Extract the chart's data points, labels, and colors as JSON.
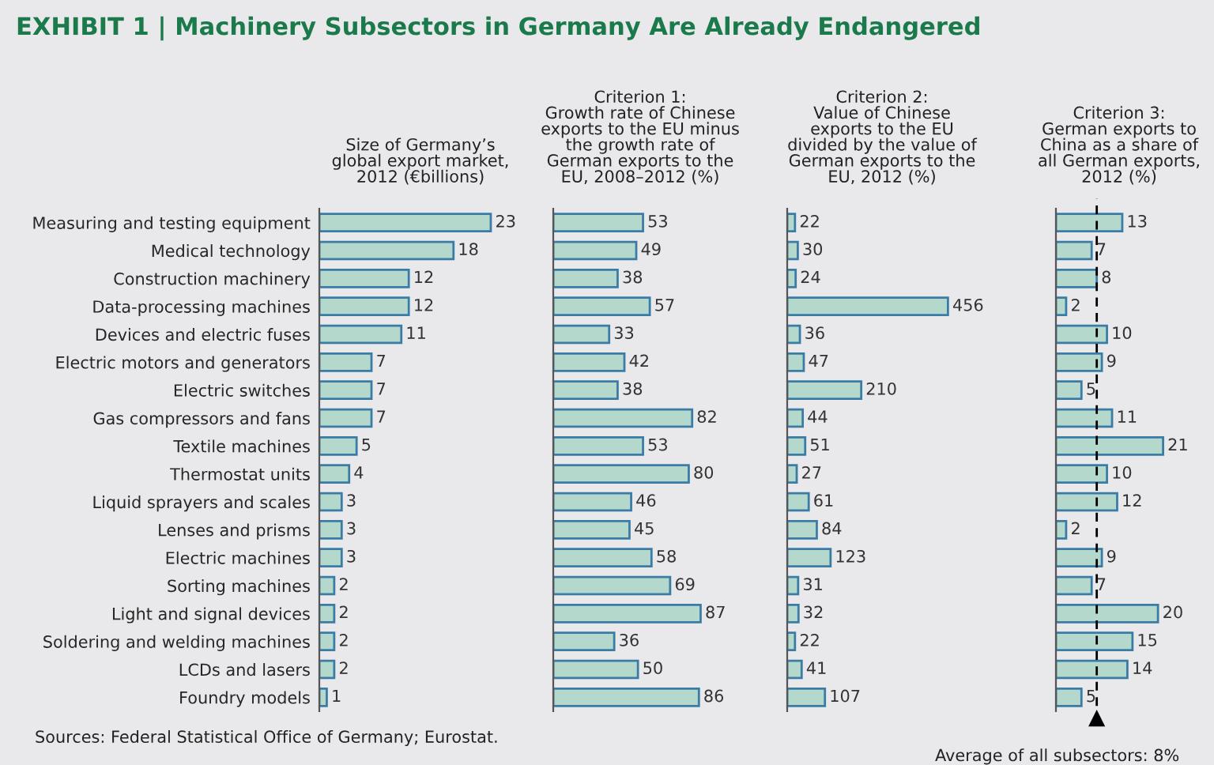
{
  "chart_data": [
    {
      "type": "bar",
      "orientation": "horizontal",
      "data_labels": true,
      "grid": false,
      "legend": false,
      "title": "Size of Germany’s\nglobal export market,\n2012 (€billions)",
      "annotations": [
        "EXHIBIT 1 | Machinery Subsectors in Germany Are Already Endangered",
        "Sources: Federal Statistical Office of Germany; Eurostat."
      ],
      "categories": [
        "Measuring and testing equipment",
        "Medical technology",
        "Construction machinery",
        "Data-processing machines",
        "Devices and electric fuses",
        "Electric motors and generators",
        "Electric switches",
        "Gas compressors and fans",
        "Textile machines",
        "Thermostat units",
        "Liquid sprayers and scales",
        "Lenses and prisms",
        "Electric machines",
        "Sorting machines",
        "Light and signal devices",
        "Soldering and welding machines",
        "LCDs and lasers",
        "Foundry models"
      ],
      "series": [
        {
          "color": "#b5d8cc",
          "values": [
            23,
            18,
            12,
            12,
            11,
            7,
            7,
            7,
            5,
            4,
            3,
            3,
            3,
            2,
            2,
            2,
            2,
            1
          ]
        }
      ]
    },
    {
      "type": "bar",
      "orientation": "horizontal",
      "data_labels": true,
      "grid": false,
      "legend": false,
      "title": "Criterion 1:\nGrowth rate of Chinese\nexports to the EU minus\nthe growth rate of\nGerman exports to the\nEU, 2008–2012 (%)",
      "series": [
        {
          "color": "#b5d8cc",
          "values": [
            53,
            49,
            38,
            57,
            33,
            42,
            38,
            82,
            53,
            80,
            46,
            45,
            58,
            69,
            87,
            36,
            50,
            86
          ]
        }
      ]
    },
    {
      "type": "bar",
      "orientation": "horizontal",
      "data_labels": true,
      "grid": false,
      "legend": false,
      "title": "Criterion 2:\nValue of Chinese\nexports to the EU\ndivided by the value of\nGerman exports to the\nEU, 2012 (%)",
      "series": [
        {
          "color": "#b5d8cc",
          "values": [
            22,
            30,
            24,
            456,
            36,
            47,
            210,
            44,
            51,
            27,
            61,
            84,
            123,
            31,
            32,
            22,
            41,
            107
          ]
        }
      ]
    },
    {
      "type": "bar",
      "orientation": "horizontal",
      "data_labels": true,
      "grid": false,
      "legend": false,
      "title": "Criterion 3:\nGerman exports to\nChina as a share of\nall German exports,\n2012 (%)",
      "series": [
        {
          "color": "#b5d8cc",
          "values": [
            13,
            7,
            8,
            2,
            10,
            9,
            5,
            11,
            21,
            10,
            12,
            2,
            9,
            7,
            20,
            15,
            14,
            5
          ]
        }
      ],
      "ref_lines": [
        {
          "axis": "x",
          "value": 8,
          "label": "Average of all subsectors: 8%",
          "color": "#000000",
          "line_style": "dashed"
        }
      ]
    }
  ]
}
